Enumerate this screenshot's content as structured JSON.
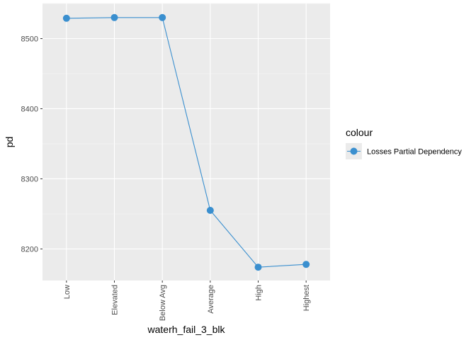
{
  "chart_data": {
    "type": "line",
    "categories": [
      "Low",
      "Elevated",
      "Below Avg",
      "Average",
      "High",
      "Highest"
    ],
    "series": [
      {
        "name": "Losses Partial Dependency",
        "values": [
          8529,
          8530,
          8530,
          8255,
          8174,
          8178
        ],
        "color": "#3a8fcf"
      }
    ],
    "xlabel": "waterh_fail_3_blk",
    "ylabel": "pd",
    "ylim": [
      8155,
      8550
    ],
    "yticks": [
      8200,
      8300,
      8400,
      8500
    ],
    "legend": {
      "title": "colour",
      "position": "right"
    },
    "grid": true,
    "panel_background": "#ebebeb"
  }
}
